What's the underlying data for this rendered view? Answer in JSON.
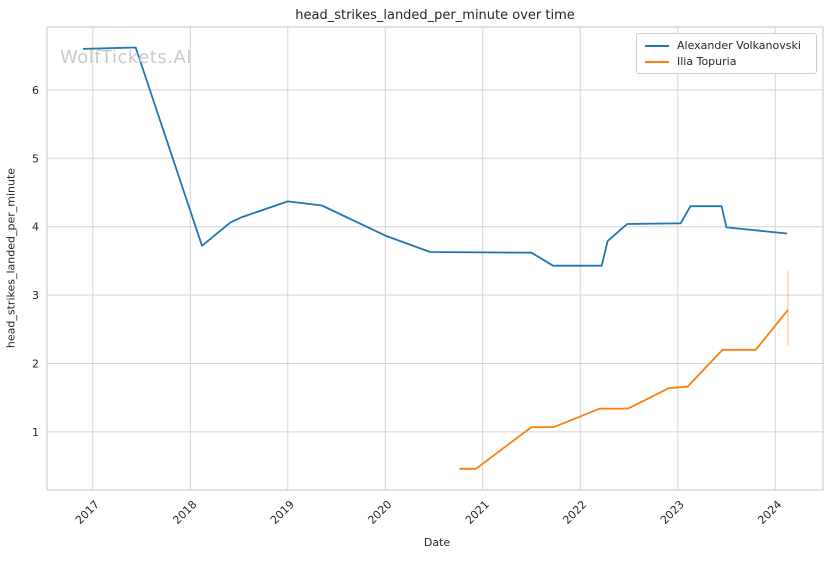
{
  "figure": {
    "watermark": "WolfTickets.AI"
  },
  "chart_data": {
    "type": "line",
    "title": "head_strikes_landed_per_minute over time",
    "xlabel": "Date",
    "ylabel": "head_strikes_landed_per_minute",
    "xlim": [
      2016.53,
      2024.49
    ],
    "ylim": [
      0.15,
      6.92
    ],
    "x_ticks": [
      2017,
      2018,
      2019,
      2020,
      2021,
      2022,
      2023,
      2024
    ],
    "y_ticks": [
      1,
      2,
      3,
      4,
      5,
      6
    ],
    "grid": true,
    "legend_position": "upper right",
    "colors": {
      "grid": "#d5d5d5",
      "frame": "#cfcfcf",
      "text": "#262626",
      "watermark": "#c9c9c9",
      "background": "#ffffff"
    },
    "series": [
      {
        "name": "Alexander Volkanovski",
        "color": "#1f77b4",
        "points": [
          [
            2016.9,
            6.6
          ],
          [
            2017.44,
            6.62
          ],
          [
            2018.12,
            3.72
          ],
          [
            2018.41,
            4.06
          ],
          [
            2018.53,
            4.14
          ],
          [
            2019.0,
            4.37
          ],
          [
            2019.35,
            4.31
          ],
          [
            2020.0,
            3.87
          ],
          [
            2020.46,
            3.63
          ],
          [
            2021.5,
            3.62
          ],
          [
            2021.72,
            3.43
          ],
          [
            2022.22,
            3.43
          ],
          [
            2022.28,
            3.79
          ],
          [
            2022.48,
            4.04
          ],
          [
            2023.03,
            4.05
          ],
          [
            2023.13,
            4.3
          ],
          [
            2023.45,
            4.3
          ],
          [
            2023.5,
            3.99
          ],
          [
            2024.12,
            3.9
          ]
        ]
      },
      {
        "name": "Ilia Topuria",
        "color": "#ff7f0e",
        "points": [
          [
            2020.76,
            0.46
          ],
          [
            2020.93,
            0.46
          ],
          [
            2021.5,
            1.07
          ],
          [
            2021.73,
            1.07
          ],
          [
            2022.2,
            1.34
          ],
          [
            2022.49,
            1.34
          ],
          [
            2022.91,
            1.64
          ],
          [
            2023.1,
            1.66
          ],
          [
            2023.46,
            2.2
          ],
          [
            2023.8,
            2.2
          ],
          [
            2024.13,
            2.78
          ]
        ],
        "error_bar": {
          "x": 2024.13,
          "y_low": 2.26,
          "y_high": 3.35
        }
      }
    ]
  }
}
